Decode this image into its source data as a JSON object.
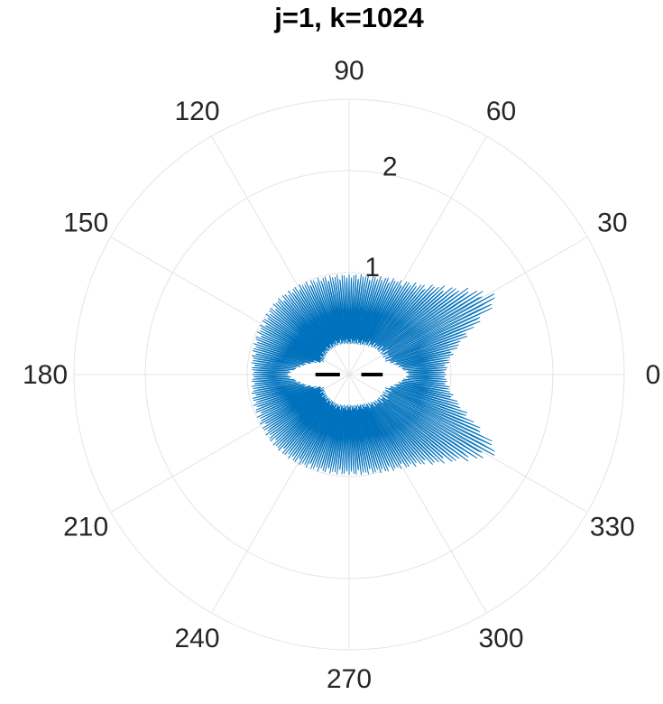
{
  "chart_data": {
    "type": "line",
    "subtype": "polar",
    "title": "j=1, k=1024",
    "theta_ticks_deg": [
      0,
      30,
      60,
      90,
      120,
      150,
      180,
      210,
      240,
      270,
      300,
      330
    ],
    "theta_tick_labels": [
      "0",
      "30",
      "60",
      "90",
      "120",
      "150",
      "180",
      "210",
      "240",
      "270",
      "300",
      "330"
    ],
    "r_ticks": [
      1,
      2
    ],
    "r_tick_labels": [
      "1",
      "2"
    ],
    "rlim": [
      0,
      2.7
    ],
    "grid": true,
    "legend": "none",
    "series": [
      {
        "color": "#0072bd",
        "style": "dense oscillating line, mirror-symmetric about 0 degrees",
        "envelope_outer": [
          {
            "theta": 0,
            "r": 0.95
          },
          {
            "theta": 5,
            "r": 0.97
          },
          {
            "theta": 10,
            "r": 1.02
          },
          {
            "theta": 15,
            "r": 1.12
          },
          {
            "theta": 20,
            "r": 1.28
          },
          {
            "theta": 25,
            "r": 1.55
          },
          {
            "theta": 28,
            "r": 1.66
          },
          {
            "theta": 32,
            "r": 1.55
          },
          {
            "theta": 40,
            "r": 1.33
          },
          {
            "theta": 50,
            "r": 1.15
          },
          {
            "theta": 60,
            "r": 1.06
          },
          {
            "theta": 75,
            "r": 1.0
          },
          {
            "theta": 90,
            "r": 0.98
          },
          {
            "theta": 105,
            "r": 0.99
          },
          {
            "theta": 120,
            "r": 1.01
          },
          {
            "theta": 135,
            "r": 1.02
          },
          {
            "theta": 150,
            "r": 1.0
          },
          {
            "theta": 165,
            "r": 0.98
          },
          {
            "theta": 180,
            "r": 0.95
          }
        ],
        "envelope_inner": [
          {
            "theta": 0,
            "r": 0.58
          },
          {
            "theta": 20,
            "r": 0.38
          },
          {
            "theta": 45,
            "r": 0.36
          },
          {
            "theta": 70,
            "r": 0.31
          },
          {
            "theta": 90,
            "r": 0.3
          },
          {
            "theta": 110,
            "r": 0.31
          },
          {
            "theta": 135,
            "r": 0.3
          },
          {
            "theta": 155,
            "r": 0.28
          },
          {
            "theta": 180,
            "r": 0.6
          }
        ]
      },
      {
        "color": "#000000",
        "style": "two short horizontal segments along the 0-180 axis",
        "segments": [
          {
            "theta": 180,
            "r_from": 0.09,
            "r_to": 0.33
          },
          {
            "theta": 0,
            "r_from": 0.12,
            "r_to": 0.33
          }
        ]
      }
    ]
  }
}
